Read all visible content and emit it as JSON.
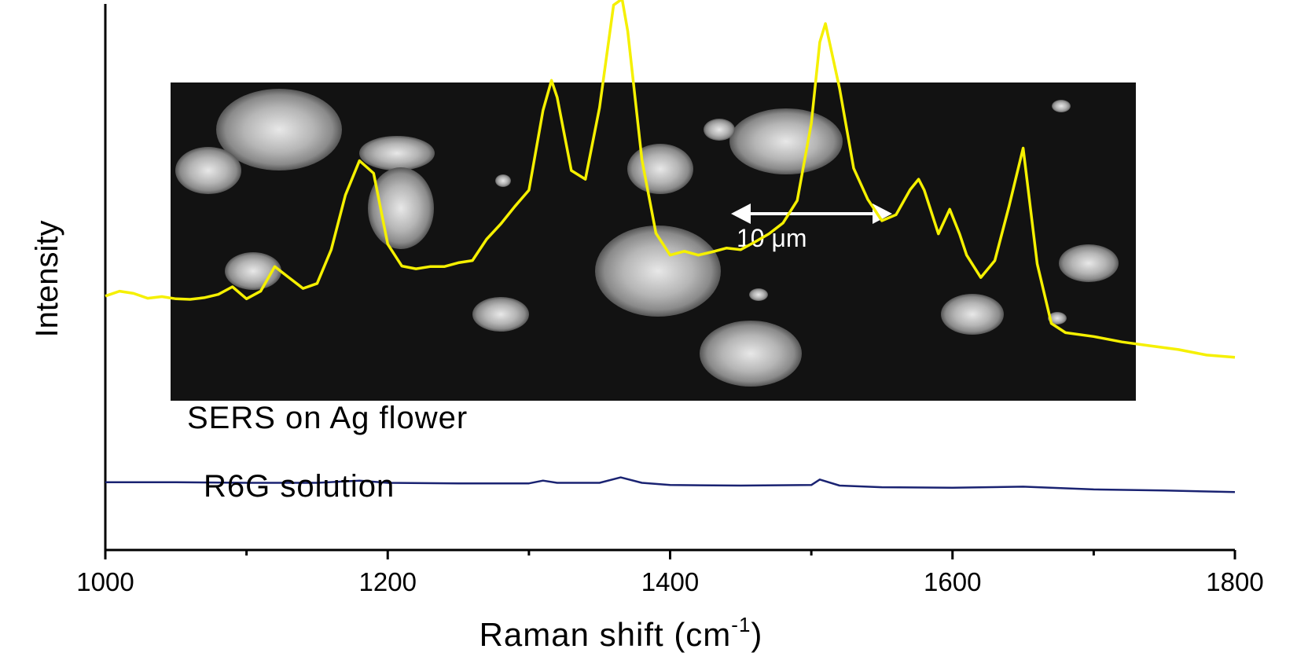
{
  "chart_data": {
    "type": "line",
    "xlabel": "Raman shift (cm",
    "xlabel_sup": "-1",
    "xlabel_close": ")",
    "ylabel": "Intensity",
    "xlim": [
      1000,
      1800
    ],
    "ylim": [
      0,
      100
    ],
    "x_ticks": [
      1000,
      1200,
      1400,
      1600,
      1800
    ],
    "x_tick_labels": [
      "1000",
      "1200",
      "1400",
      "1600",
      "1800"
    ],
    "grid": false,
    "inset": {
      "kind": "SEM micrograph of Ag flower particles",
      "scale_bar_label": "10 μm"
    },
    "series": [
      {
        "name": "SERS on Ag flower",
        "color": "#f5f000",
        "x": [
          1000,
          1010,
          1020,
          1030,
          1040,
          1050,
          1060,
          1070,
          1080,
          1090,
          1100,
          1110,
          1120,
          1130,
          1140,
          1150,
          1160,
          1170,
          1180,
          1190,
          1200,
          1210,
          1220,
          1230,
          1240,
          1250,
          1260,
          1270,
          1280,
          1290,
          1300,
          1310,
          1316,
          1320,
          1330,
          1340,
          1350,
          1360,
          1366,
          1370,
          1380,
          1390,
          1400,
          1410,
          1420,
          1430,
          1440,
          1450,
          1460,
          1470,
          1480,
          1490,
          1500,
          1506,
          1510,
          1520,
          1530,
          1540,
          1550,
          1560,
          1570,
          1576,
          1580,
          1590,
          1598,
          1605,
          1610,
          1620,
          1630,
          1640,
          1650,
          1660,
          1670,
          1680,
          1700,
          1720,
          1740,
          1760,
          1780,
          1800
        ],
        "values": [
          46.5,
          47.4,
          47.0,
          46.1,
          46.4,
          46.0,
          45.9,
          46.2,
          46.8,
          48.2,
          46.0,
          47.4,
          51.9,
          49.9,
          47.9,
          48.8,
          55.0,
          65.0,
          71.3,
          69.0,
          56.0,
          52.0,
          51.5,
          51.9,
          51.9,
          52.6,
          53.0,
          56.9,
          59.7,
          62.9,
          65.9,
          80.5,
          86.0,
          82.9,
          69.5,
          67.9,
          81.0,
          99.8,
          100.9,
          95.0,
          71.5,
          58.0,
          54.0,
          54.7,
          54.0,
          54.6,
          55.3,
          55.0,
          56.4,
          57.9,
          59.9,
          64.0,
          78.1,
          93.0,
          96.4,
          84.5,
          69.9,
          64.2,
          60.3,
          61.4,
          66.0,
          67.9,
          65.9,
          57.9,
          62.4,
          57.9,
          54.0,
          49.9,
          53.0,
          62.9,
          73.6,
          52.4,
          41.5,
          39.8,
          39.1,
          38.1,
          37.4,
          36.7,
          35.7,
          35.3
        ]
      },
      {
        "name": "R6G solution",
        "color": "#1a2372",
        "x": [
          1000,
          1050,
          1100,
          1150,
          1180,
          1200,
          1250,
          1300,
          1310,
          1320,
          1350,
          1365,
          1380,
          1400,
          1450,
          1500,
          1506,
          1520,
          1550,
          1600,
          1650,
          1700,
          1750,
          1800
        ],
        "values": [
          12.4,
          12.4,
          12.3,
          12.3,
          12.7,
          12.3,
          12.2,
          12.2,
          12.7,
          12.3,
          12.3,
          13.3,
          12.3,
          11.9,
          11.8,
          11.9,
          12.9,
          11.8,
          11.5,
          11.4,
          11.6,
          11.1,
          10.9,
          10.6
        ]
      }
    ]
  }
}
